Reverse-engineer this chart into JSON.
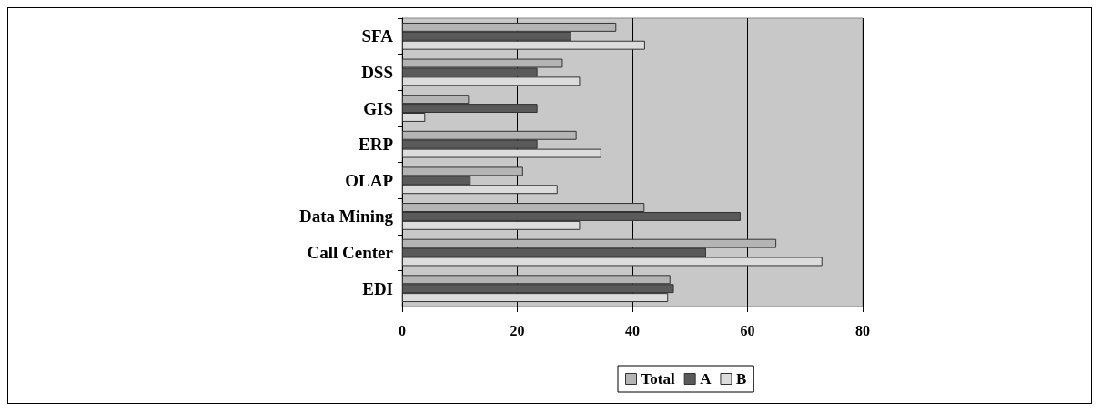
{
  "chart_data": {
    "type": "bar",
    "orientation": "horizontal",
    "categories": [
      "SFA",
      "DSS",
      "GIS",
      "ERP",
      "OLAP",
      "Data Mining",
      "Call Center",
      "EDI"
    ],
    "series": [
      {
        "name": "Total",
        "color": "#b4b4b4",
        "values": [
          37.2,
          27.9,
          11.6,
          30.3,
          21.0,
          42.1,
          65.0,
          46.6
        ]
      },
      {
        "name": "A",
        "color": "#5a5a5a",
        "values": [
          29.4,
          23.5,
          23.5,
          23.5,
          11.9,
          58.8,
          52.8,
          47.2
        ]
      },
      {
        "name": "B",
        "color": "#dcdcdc",
        "values": [
          42.2,
          30.9,
          4.0,
          34.6,
          27.0,
          30.9,
          73.0,
          46.2
        ]
      }
    ],
    "xlim": [
      0,
      80
    ],
    "xticks": [
      0,
      20,
      40,
      60,
      80
    ],
    "grid": "x",
    "legend": "bottom"
  }
}
